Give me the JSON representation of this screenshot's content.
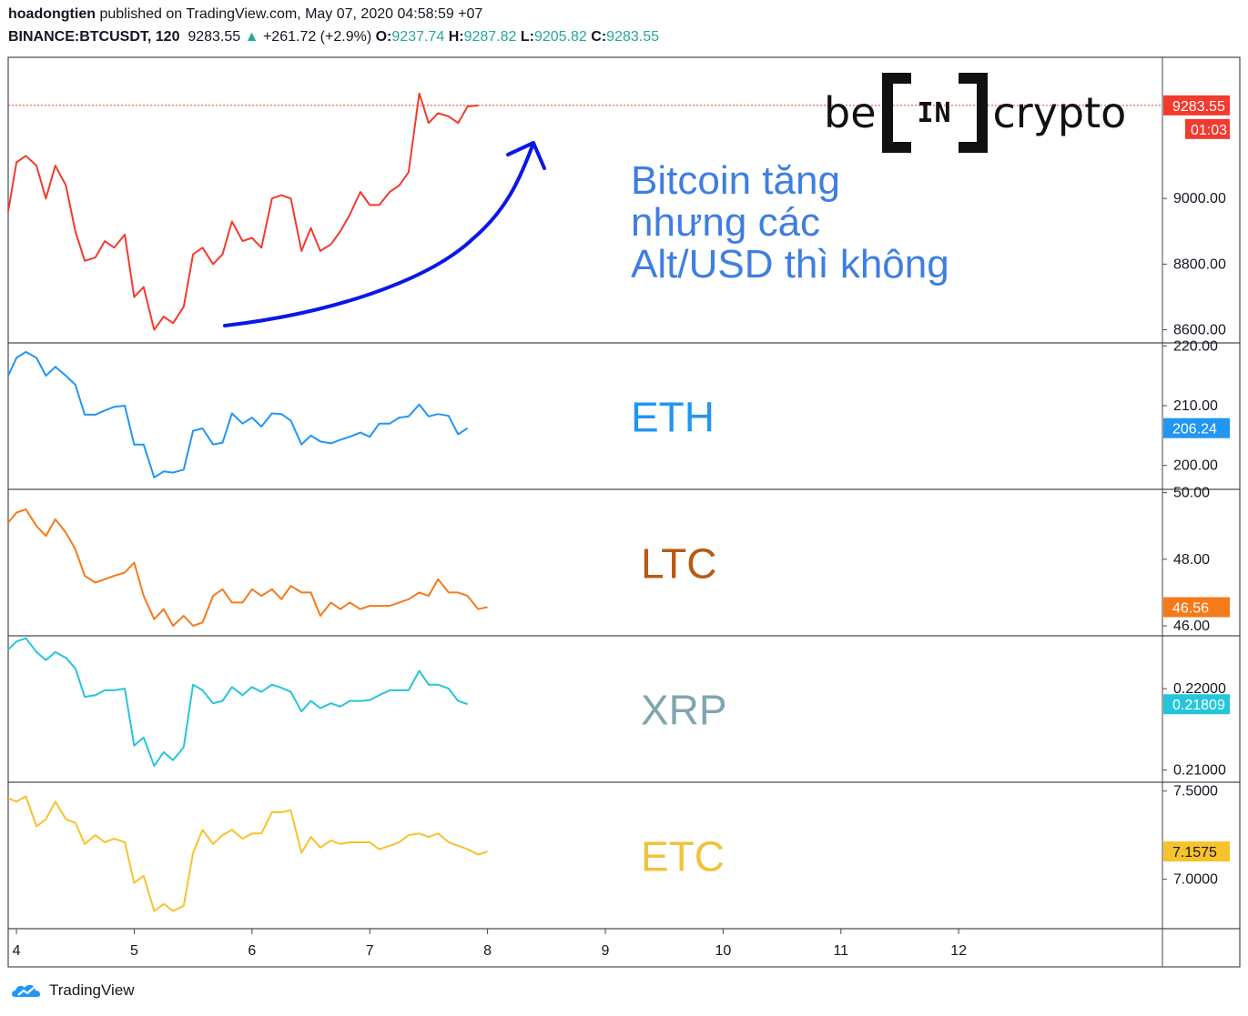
{
  "header": {
    "author": "hoadongtien",
    "published": "published on TradingView.com, May 07, 2020 04:58:59 +07",
    "symbol": "BINANCE:BTCUSDT, 120",
    "last": "9283.55",
    "arrow": "▲",
    "change": "+261.72 (+2.9%)",
    "o_label": "O:",
    "o": "9237.74",
    "h_label": "H:",
    "h": "9287.82",
    "l_label": "L:",
    "l": "9205.82",
    "c_label": "C:",
    "c": "9283.55"
  },
  "logo": {
    "left": "be",
    "middle": "IN",
    "right": "crypto"
  },
  "footer": {
    "brand": "TradingView",
    "icon": "tradingview-cloud-icon"
  },
  "annotation": {
    "lines": [
      "Bitcoin tăng",
      "nhưng các",
      "Alt/USD thì không"
    ]
  },
  "colors": {
    "btc": "#f23a2e",
    "eth": "#2196f3",
    "ltc": "#f57a1b",
    "xrp": "#26c6da",
    "etc": "#f7c22b",
    "arrow": "#0a17e6",
    "annot": "#3f7ee0",
    "ltc_label": "#b85a12",
    "xrp_label": "#7fa6ad",
    "etc_label": "#f2c23b"
  },
  "chart_data": {
    "type": "line",
    "x_axis": {
      "ticks": [
        "4",
        "5",
        "6",
        "7",
        "8",
        "9",
        "10",
        "11",
        "12"
      ],
      "tick_values": [
        4,
        5,
        6,
        7,
        8,
        9,
        10,
        11,
        12
      ],
      "xlim": [
        3.93,
        13.73
      ]
    },
    "x": [
      3.93,
      4.0,
      4.08,
      4.17,
      4.25,
      4.33,
      4.42,
      4.5,
      4.58,
      4.67,
      4.75,
      4.83,
      4.92,
      5.0,
      5.08,
      5.17,
      5.25,
      5.33,
      5.42,
      5.5,
      5.58,
      5.67,
      5.75,
      5.83,
      5.92,
      6.0,
      6.08,
      6.17,
      6.25,
      6.33,
      6.42,
      6.5,
      6.58,
      6.67,
      6.75,
      6.83,
      6.92,
      7.0,
      7.08,
      7.17,
      7.25,
      7.33,
      7.42,
      7.5,
      7.58,
      7.67,
      7.75,
      7.83,
      7.92,
      8.0,
      8.08
    ],
    "panes": [
      {
        "id": "btc",
        "label": "",
        "last_label": "9283.55",
        "countdown": "01:03",
        "y_ticks": [
          "8600.00",
          "8800.00",
          "9000.00"
        ],
        "y_tick_values": [
          8600,
          8800,
          9000
        ],
        "ylim": [
          8560,
          9430
        ],
        "values": [
          8960,
          9110,
          9130,
          9100,
          9000,
          9100,
          9040,
          8900,
          8810,
          8820,
          8870,
          8850,
          8890,
          8700,
          8730,
          8600,
          8640,
          8620,
          8670,
          8830,
          8850,
          8800,
          8830,
          8930,
          8870,
          8880,
          8850,
          9000,
          9010,
          9000,
          8840,
          8910,
          8840,
          8860,
          8900,
          8950,
          9020,
          8980,
          8980,
          9020,
          9040,
          9080,
          9320,
          9230,
          9260,
          9250,
          9230,
          9280,
          9283.55,
          null,
          null
        ]
      },
      {
        "id": "eth",
        "label": "ETH",
        "last_label": "206.24",
        "y_ticks": [
          "200.00",
          "210.00",
          "220.00"
        ],
        "y_tick_values": [
          200,
          210,
          220
        ],
        "ylim": [
          196,
          220.5
        ],
        "values": [
          215,
          218,
          219,
          218,
          215,
          216.5,
          215,
          213.5,
          208.5,
          208.5,
          209.2,
          209.8,
          210,
          203.5,
          203.5,
          198,
          199,
          198.8,
          199.3,
          205.8,
          206.2,
          203.5,
          203.8,
          208.7,
          207,
          208,
          206.5,
          208.7,
          208.6,
          207.5,
          203.5,
          205,
          204,
          203.7,
          204.3,
          204.8,
          205.5,
          204.8,
          207,
          207,
          208,
          208.2,
          210.2,
          208.2,
          208.6,
          208.3,
          205.2,
          206.24,
          null,
          null,
          null
        ]
      },
      {
        "id": "ltc",
        "label": "LTC",
        "last_label": "46.56",
        "y_ticks": [
          "46.00",
          "48.00",
          "50.00"
        ],
        "y_tick_values": [
          46,
          48,
          50
        ],
        "ylim": [
          45.7,
          50.1
        ],
        "values": [
          49.1,
          49.4,
          49.5,
          49.0,
          48.7,
          49.2,
          48.8,
          48.3,
          47.5,
          47.3,
          47.4,
          47.5,
          47.6,
          47.9,
          46.9,
          46.2,
          46.5,
          46.0,
          46.3,
          46.0,
          46.1,
          46.9,
          47.1,
          46.7,
          46.7,
          47.1,
          46.9,
          47.1,
          46.8,
          47.2,
          47.0,
          47.0,
          46.3,
          46.7,
          46.5,
          46.7,
          46.5,
          46.6,
          46.6,
          46.6,
          46.7,
          46.8,
          47.0,
          46.9,
          47.4,
          47.0,
          47.0,
          46.9,
          46.5,
          46.56,
          null
        ]
      },
      {
        "id": "xrp",
        "label": "XRP",
        "last_label": "0.21809",
        "y_ticks": [
          "0.21000",
          "0.22000"
        ],
        "y_tick_values": [
          0.21,
          0.22
        ],
        "ylim": [
          0.2085,
          0.2265
        ],
        "values": [
          0.2248,
          0.2258,
          0.2262,
          0.2245,
          0.2235,
          0.2245,
          0.2238,
          0.2225,
          0.219,
          0.2192,
          0.2198,
          0.2198,
          0.22,
          0.213,
          0.214,
          0.2105,
          0.2122,
          0.2112,
          0.2128,
          0.2205,
          0.2198,
          0.2182,
          0.2185,
          0.2202,
          0.2192,
          0.2202,
          0.2196,
          0.2205,
          0.2201,
          0.2196,
          0.2172,
          0.2185,
          0.2176,
          0.2182,
          0.2178,
          0.2185,
          0.2185,
          0.2186,
          0.2192,
          0.2198,
          0.2198,
          0.2198,
          0.2222,
          0.2205,
          0.2205,
          0.22,
          0.2185,
          0.21809,
          null,
          null,
          null
        ]
      },
      {
        "id": "etc",
        "label": "ETC",
        "last_label": "7.1575",
        "y_ticks": [
          "7.0000",
          "7.5000"
        ],
        "y_tick_values": [
          7.0,
          7.5
        ],
        "ylim": [
          6.72,
          7.55
        ],
        "values": [
          7.46,
          7.44,
          7.47,
          7.3,
          7.34,
          7.44,
          7.34,
          7.32,
          7.2,
          7.25,
          7.21,
          7.23,
          7.21,
          6.98,
          7.02,
          6.82,
          6.86,
          6.82,
          6.85,
          7.15,
          7.28,
          7.2,
          7.25,
          7.28,
          7.23,
          7.26,
          7.26,
          7.38,
          7.38,
          7.39,
          7.15,
          7.24,
          7.18,
          7.22,
          7.2,
          7.21,
          7.21,
          7.21,
          7.17,
          7.19,
          7.21,
          7.25,
          7.26,
          7.24,
          7.26,
          7.21,
          7.19,
          7.17,
          7.14,
          7.1575,
          null
        ]
      }
    ]
  }
}
